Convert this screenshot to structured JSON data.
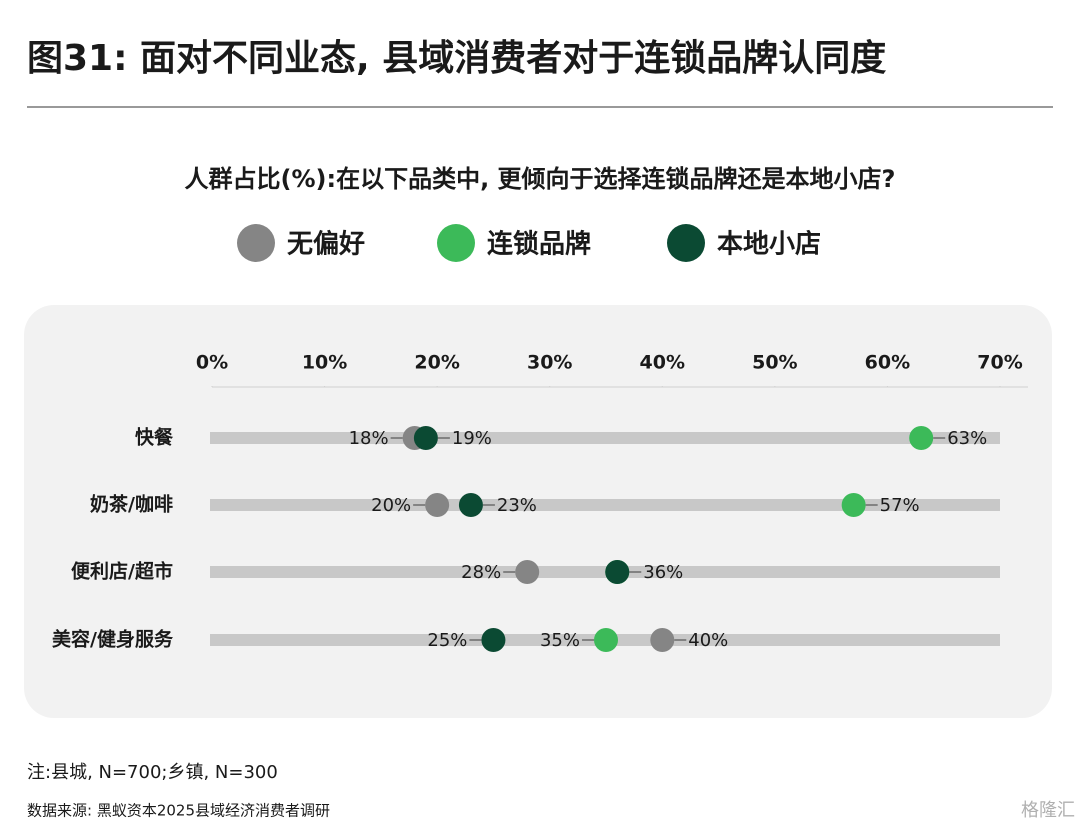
{
  "chart_data": {
    "type": "dot",
    "title": "图31: 面对不同业态, 县域消费者对于连锁品牌认同度",
    "subtitle": "人群占比(%):在以下品类中, 更倾向于选择连锁品牌还是本地小店?",
    "categories": [
      "快餐",
      "奶茶/咖啡",
      "便利店/超市",
      "美容/健身服务"
    ],
    "series": [
      {
        "name": "无偏好",
        "color": "#858585",
        "values": [
          18,
          20,
          28,
          40
        ],
        "value_labels": [
          "18%",
          "20%",
          "28%",
          "40%"
        ]
      },
      {
        "name": "连锁品牌",
        "color": "#3cba59",
        "values": [
          63,
          57,
          36,
          35
        ],
        "value_labels": [
          "63%",
          "57%",
          "36%",
          "35%"
        ]
      },
      {
        "name": "本地小店",
        "color": "#0b4a33",
        "values": [
          19,
          23,
          36,
          25
        ],
        "value_labels": [
          "19%",
          "23%",
          null,
          "25%"
        ]
      }
    ],
    "xlim": [
      0,
      70
    ],
    "xticks": [
      {
        "value": 0,
        "label": "0%"
      },
      {
        "value": 10,
        "label": "10%"
      },
      {
        "value": 20,
        "label": "20%"
      },
      {
        "value": 30,
        "label": "30%"
      },
      {
        "value": 40,
        "label": "40%"
      },
      {
        "value": 50,
        "label": "50%"
      },
      {
        "value": 60,
        "label": "60%"
      },
      {
        "value": 70,
        "label": "70%"
      }
    ],
    "note": "注:县城, N=700;乡镇, N=300",
    "source": "数据来源: 黑蚁资本2025县域经济消费者调研",
    "watermark": "格隆汇"
  }
}
